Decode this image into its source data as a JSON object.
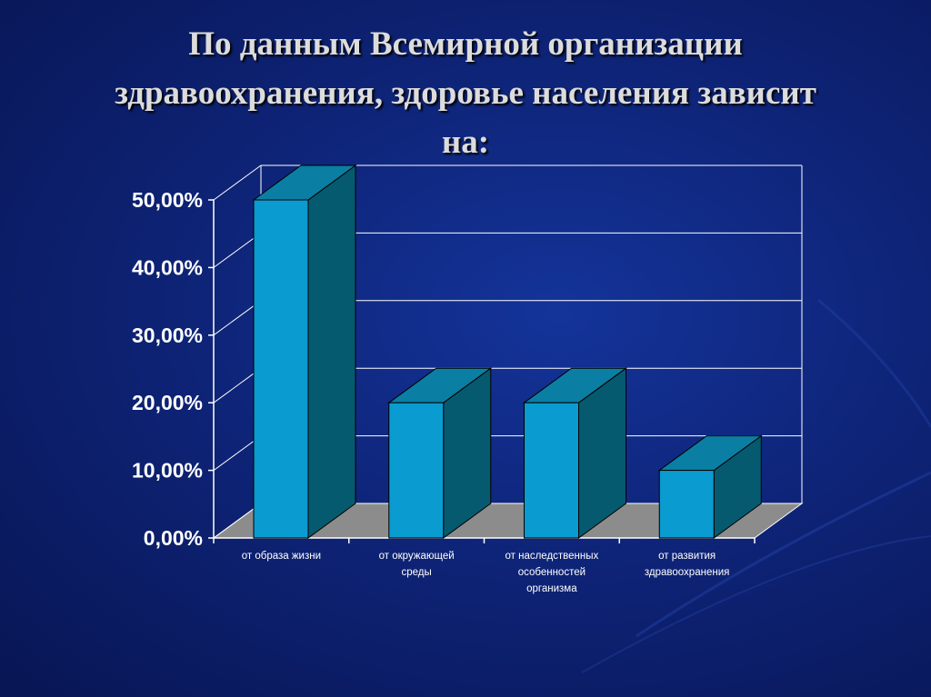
{
  "title_lines": [
    "По данным Всемирной организации",
    "здравоохранения, здоровье населения зависит",
    "на:"
  ],
  "colors": {
    "background": "#0e2478",
    "bar_front": "#0a9bd0",
    "bar_side": "#065a70",
    "bar_top": "#0b7ea3",
    "floor": "#8c8c8c",
    "grid": "#ffffff",
    "text": "#ffffff"
  },
  "chart_data": {
    "type": "bar",
    "style": "3d-column",
    "categories": [
      [
        "от образа жизни"
      ],
      [
        "от окружающей",
        "среды"
      ],
      [
        "от наследственных",
        "особенностей",
        "организма"
      ],
      [
        "от развития",
        "здравоохранения"
      ]
    ],
    "values": [
      50,
      20,
      20,
      10
    ],
    "ylim": [
      0,
      50
    ],
    "yticks": [
      0,
      10,
      20,
      30,
      40,
      50
    ],
    "ytick_labels": [
      "0,00%",
      "10,00%",
      "20,00%",
      "30,00%",
      "40,00%",
      "50,00%"
    ],
    "grid": true,
    "legend": false
  }
}
